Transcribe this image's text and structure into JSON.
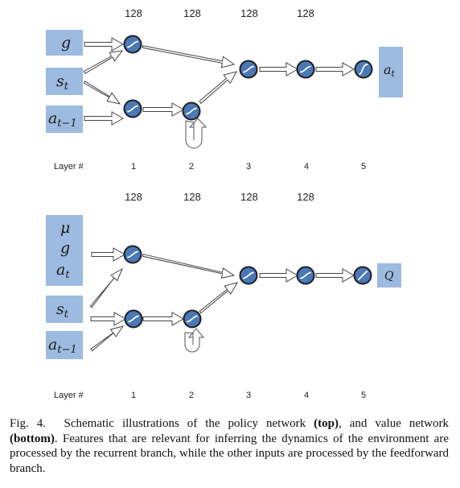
{
  "policy_network": {
    "unit_counts": [
      "128",
      "128",
      "128",
      "128"
    ],
    "layer_label": "Layer #",
    "layer_numbers": [
      "1",
      "2",
      "3",
      "4",
      "5"
    ],
    "inputs": {
      "goal": "g",
      "state_base": "s",
      "state_sub": "t",
      "prev_action_base": "a",
      "prev_action_sub": "t−1"
    },
    "output": {
      "base": "a",
      "sub": "t"
    }
  },
  "value_network": {
    "unit_counts": [
      "128",
      "128",
      "128",
      "128"
    ],
    "layer_label": "Layer #",
    "layer_numbers": [
      "1",
      "2",
      "3",
      "4",
      "5"
    ],
    "inputs": {
      "mu": "μ",
      "goal": "g",
      "action_base": "a",
      "action_sub": "t",
      "state_base": "s",
      "state_sub": "t",
      "prev_action_base": "a",
      "prev_action_sub": "t−1"
    },
    "output": {
      "label": "Q"
    }
  },
  "caption": {
    "prefix": "Fig. 4.  Schematic illustrations of the policy network ",
    "top_bold": "(top)",
    "middle": ", and value network ",
    "bottom_bold": "(bottom)",
    "suffix": ". Features that are relevant for inferring the dynamics of the environment are processed by the recurrent branch, while the other inputs are processed by the feedforward branch."
  }
}
